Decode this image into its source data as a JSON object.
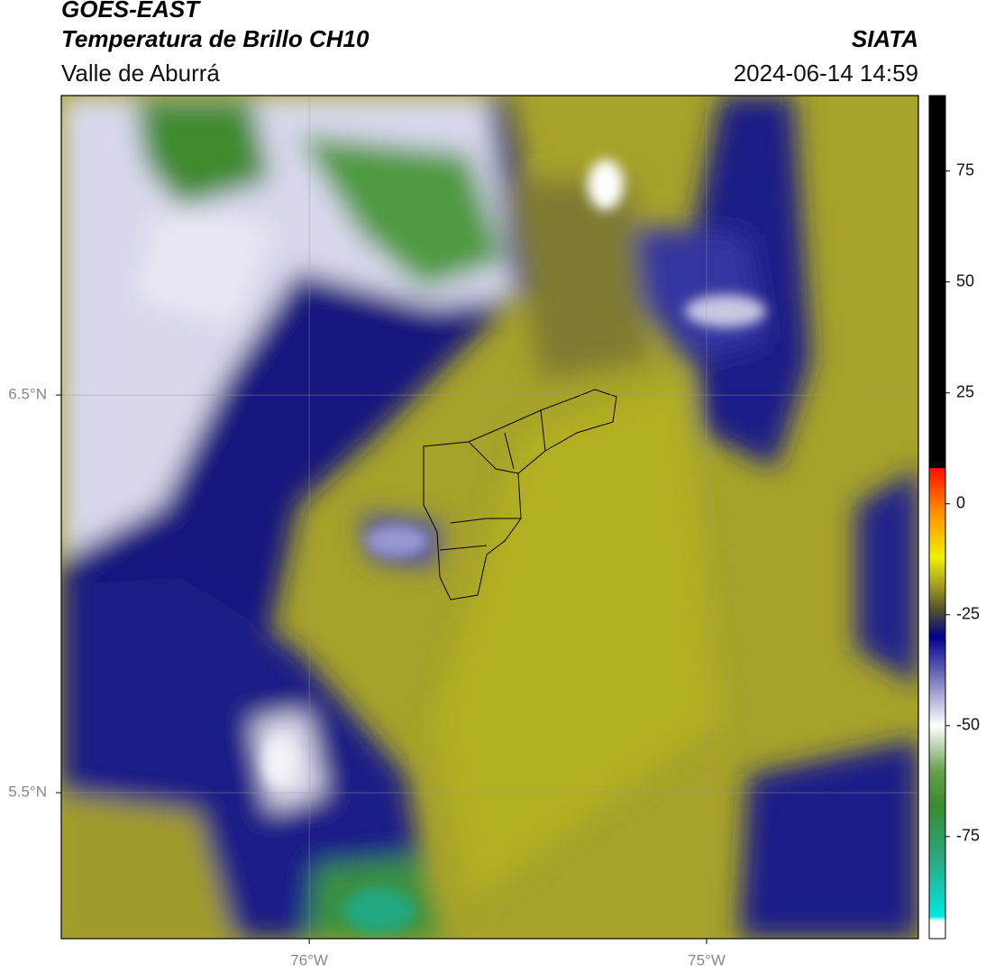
{
  "header": {
    "title": "GOES-EAST",
    "subtitle": "Temperatura de Brillo CH10",
    "region": "Valle de Aburrá",
    "source": "SIATA",
    "datetime": "2024-06-14 14:59"
  },
  "map": {
    "xlim": [
      -76.624,
      -74.467
    ],
    "ylim": [
      5.133,
      7.253
    ],
    "xticks": [
      {
        "value": -76,
        "label": "76°W"
      },
      {
        "value": -75,
        "label": "75°W"
      }
    ],
    "yticks": [
      {
        "value": 6.5,
        "label": "6.5°N"
      },
      {
        "value": 5.5,
        "label": "5.5°N"
      }
    ],
    "grid": true
  },
  "colorbar": {
    "clim": [
      -98,
      92
    ],
    "ticks": [
      75,
      50,
      25,
      0,
      -25,
      -50,
      -75
    ],
    "colormap": [
      {
        "value": -98,
        "color": "#ffffff"
      },
      {
        "value": -94,
        "color": "#ffffff"
      },
      {
        "value": -93,
        "color": "#00e8e0"
      },
      {
        "value": -80,
        "color": "#2aa880"
      },
      {
        "value": -68,
        "color": "#3a8a30"
      },
      {
        "value": -60,
        "color": "#6aa050"
      },
      {
        "value": -50,
        "color": "#ffffff"
      },
      {
        "value": -40,
        "color": "#8080c0"
      },
      {
        "value": -30,
        "color": "#000090"
      },
      {
        "value": -24,
        "color": "#50502a"
      },
      {
        "value": -18,
        "color": "#a8a420"
      },
      {
        "value": -12,
        "color": "#f0f000"
      },
      {
        "value": -2,
        "color": "#ff9000"
      },
      {
        "value": 8,
        "color": "#ff1000"
      },
      {
        "value": 8.1,
        "color": "#000000"
      },
      {
        "value": 92,
        "color": "#000000"
      }
    ]
  }
}
